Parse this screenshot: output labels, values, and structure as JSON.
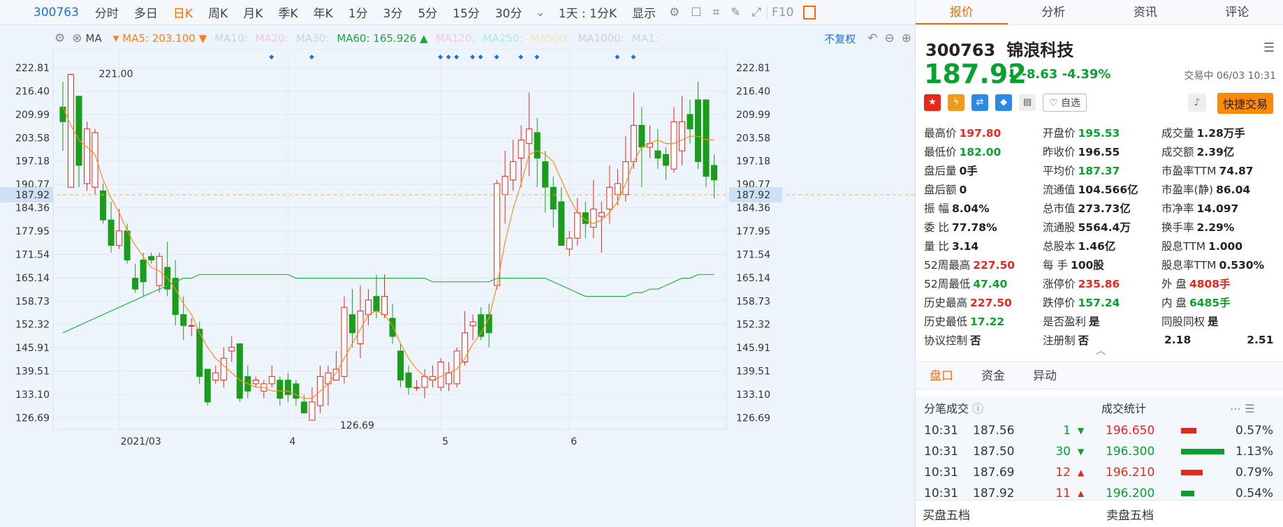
{
  "toolbar": {
    "code": "300763",
    "periods": [
      "分时",
      "多日",
      "日K",
      "周K",
      "月K",
      "季K",
      "年K",
      "1分",
      "3分",
      "5分",
      "15分",
      "30分"
    ],
    "active_index": 2,
    "interval": "1天 : 1分K",
    "display": "显示",
    "f10": "F10"
  },
  "ma": {
    "label": "MA",
    "items": [
      {
        "text": "MA5: 203.100 ▼",
        "color": "#ff7f0e"
      },
      {
        "text": "MA10:",
        "color": "#b8d8f0"
      },
      {
        "text": "MA20:",
        "color": "#f4c8d8"
      },
      {
        "text": "MA30:",
        "color": "#b8d8f0"
      },
      {
        "text": "MA60: 165.926 ▲",
        "color": "#1fa43a"
      },
      {
        "text": "MA120:",
        "color": "#f4c8d8"
      },
      {
        "text": "MA250:",
        "color": "#a8e8f4"
      },
      {
        "text": "MA500:",
        "color": "#f4e4b8"
      },
      {
        "text": "MA1000:",
        "color": "#d8c8f0"
      },
      {
        "text": "MA1:",
        "color": "#c8d8e8"
      }
    ],
    "fq": "不复权"
  },
  "chart_data": {
    "type": "candlestick",
    "ylim": [
      123.5,
      228
    ],
    "yticks": [
      "222.81",
      "216.40",
      "209.99",
      "203.58",
      "197.18",
      "190.77",
      "184.36",
      "177.95",
      "171.54",
      "165.14",
      "158.73",
      "152.32",
      "145.91",
      "139.51",
      "133.10",
      "126.69"
    ],
    "current_price": "187.92",
    "high_label": "221.00",
    "low_label": "126.69",
    "xticks": [
      {
        "label": "2021/03",
        "i": 7
      },
      {
        "label": "4",
        "i": 28
      },
      {
        "label": "5",
        "i": 47
      },
      {
        "label": "6",
        "i": 63
      }
    ],
    "candles": [
      [
        212,
        208,
        219,
        200
      ],
      [
        190,
        221,
        221,
        190
      ],
      [
        215,
        196,
        215,
        190
      ],
      [
        191,
        206,
        208,
        189
      ],
      [
        190,
        205,
        206,
        188
      ],
      [
        189,
        181,
        191,
        180
      ],
      [
        181,
        174,
        186,
        172
      ],
      [
        174,
        178,
        184,
        173
      ],
      [
        178,
        170,
        180,
        169
      ],
      [
        165,
        162,
        169,
        161
      ],
      [
        170,
        164,
        172,
        160
      ],
      [
        171,
        170,
        172,
        169
      ],
      [
        163,
        171,
        172,
        161
      ],
      [
        168,
        162,
        175,
        160
      ],
      [
        165,
        155,
        170,
        152
      ],
      [
        155,
        152,
        160,
        148
      ],
      [
        152,
        152,
        154,
        149
      ],
      [
        151,
        138,
        153,
        136
      ],
      [
        140,
        131,
        140,
        130
      ],
      [
        137,
        139,
        141,
        136
      ],
      [
        137,
        143,
        146,
        135
      ],
      [
        145,
        146,
        149,
        142
      ],
      [
        147,
        132,
        147,
        131
      ],
      [
        138,
        134,
        141,
        132
      ],
      [
        136,
        137,
        138,
        135
      ],
      [
        134,
        136,
        137,
        132
      ],
      [
        136,
        138,
        141,
        135
      ],
      [
        137,
        132,
        138,
        130
      ],
      [
        137,
        133,
        139,
        131
      ],
      [
        136,
        132,
        137,
        130
      ],
      [
        131,
        128,
        133,
        128
      ],
      [
        126,
        131,
        135,
        126
      ],
      [
        130,
        138,
        141,
        128
      ],
      [
        136,
        139,
        141,
        130
      ],
      [
        137,
        140,
        145,
        137
      ],
      [
        138,
        157,
        160,
        136
      ],
      [
        155,
        150,
        162,
        146
      ],
      [
        147,
        156,
        163,
        143
      ],
      [
        155,
        159,
        162,
        152
      ],
      [
        160,
        156,
        166,
        154
      ],
      [
        155,
        160,
        166,
        154
      ],
      [
        154,
        149,
        158,
        147
      ],
      [
        145,
        137,
        147,
        135
      ],
      [
        139,
        135,
        141,
        133
      ],
      [
        135,
        135,
        137,
        134
      ],
      [
        135,
        138,
        140,
        132
      ],
      [
        137,
        138,
        141,
        135
      ],
      [
        135,
        142,
        143,
        134
      ],
      [
        136,
        139,
        142,
        134
      ],
      [
        136,
        145,
        146,
        135
      ],
      [
        142,
        150,
        156,
        141
      ],
      [
        152,
        153,
        155,
        148
      ],
      [
        155,
        149,
        157,
        148
      ],
      [
        155,
        150,
        158,
        146
      ],
      [
        163,
        191,
        192,
        162
      ],
      [
        188,
        193,
        200,
        180
      ],
      [
        192,
        197,
        203,
        189
      ],
      [
        198,
        203,
        207,
        190
      ],
      [
        202,
        206,
        216,
        193
      ],
      [
        205,
        198,
        209,
        190
      ],
      [
        197,
        190,
        200,
        183
      ],
      [
        190,
        184,
        193,
        179
      ],
      [
        186,
        174,
        190,
        174
      ],
      [
        173,
        176,
        178,
        171
      ],
      [
        176,
        183,
        187,
        174
      ],
      [
        183,
        180,
        186,
        176
      ],
      [
        179,
        184,
        192,
        176
      ],
      [
        182,
        183,
        186,
        172
      ],
      [
        184,
        190,
        196,
        180
      ],
      [
        188,
        191,
        195,
        185
      ],
      [
        188,
        197,
        204,
        186
      ],
      [
        197,
        207,
        216,
        195
      ],
      [
        207,
        201,
        212,
        190
      ],
      [
        201,
        202,
        207,
        198
      ],
      [
        200,
        198,
        206,
        195
      ],
      [
        199,
        196,
        201,
        192
      ],
      [
        195,
        208,
        212,
        194
      ],
      [
        200,
        208,
        215,
        196
      ],
      [
        210,
        206,
        214,
        202
      ],
      [
        214,
        197,
        219,
        195
      ],
      [
        214,
        193,
        214,
        190
      ],
      [
        196,
        192,
        199,
        187
      ]
    ],
    "ma5": [
      212,
      207,
      203,
      201,
      199,
      192,
      187,
      183,
      178,
      174,
      171,
      168,
      167,
      165,
      162,
      158,
      155,
      150,
      146,
      143,
      141,
      139,
      137,
      136,
      135,
      135,
      134,
      134,
      134,
      133,
      132,
      132,
      134,
      136,
      139,
      143,
      147,
      151,
      155,
      156,
      155,
      152,
      147,
      143,
      140,
      138,
      137,
      138,
      139,
      140,
      143,
      147,
      150,
      154,
      163,
      175,
      184,
      191,
      199,
      200,
      199,
      197,
      192,
      187,
      183,
      181,
      180,
      181,
      183,
      186,
      191,
      197,
      201,
      202,
      203,
      202,
      202,
      203,
      204,
      204,
      203,
      203
    ],
    "ma60": [
      150,
      151,
      152,
      153,
      154,
      155,
      156,
      157,
      158,
      159,
      160,
      161,
      162,
      163,
      164,
      165,
      165,
      166,
      166,
      166,
      166,
      166,
      166,
      166,
      166,
      166,
      166,
      166,
      166,
      165,
      165,
      165,
      165,
      165,
      165,
      165,
      165,
      165,
      165,
      165,
      165,
      165,
      165,
      165,
      165,
      165,
      164,
      164,
      164,
      164,
      164,
      164,
      164,
      164,
      165,
      165,
      165,
      165,
      165,
      165,
      165,
      164,
      163,
      162,
      161,
      160,
      160,
      160,
      160,
      160,
      160,
      161,
      161,
      162,
      162,
      163,
      164,
      165,
      165,
      166,
      166,
      166
    ]
  },
  "right": {
    "tabs": [
      "报价",
      "分析",
      "资讯",
      "评论"
    ],
    "code": "300763",
    "name": "锦浪科技",
    "price": "187.92",
    "arrow": "⬇",
    "change": "-8.63",
    "pct": "-4.39%",
    "status": "交易中 06/03 10:31",
    "tag": "自选",
    "quick": "快捷交易",
    "rows": [
      [
        [
          "最高价",
          "197.80",
          "red"
        ],
        [
          "开盘价",
          "195.53",
          "grn"
        ],
        [
          "成交量",
          "1.28万手",
          "blk"
        ]
      ],
      [
        [
          "最低价",
          "182.00",
          "grn"
        ],
        [
          "昨收价",
          "196.55",
          "blk"
        ],
        [
          "成交额",
          "2.39亿",
          "blk"
        ]
      ],
      [
        [
          "盘后量",
          "0手",
          "blk"
        ],
        [
          "平均价",
          "187.37",
          "grn"
        ],
        [
          "市盈率TTM",
          "74.87",
          "blk"
        ]
      ],
      [
        [
          "盘后额",
          "0",
          "blk"
        ],
        [
          "流通值",
          "104.566亿",
          "blk"
        ],
        [
          "市盈率(静)",
          "86.04",
          "blk"
        ]
      ],
      [
        [
          "振 幅",
          "8.04%",
          "blk"
        ],
        [
          "总市值",
          "273.73亿",
          "blk"
        ],
        [
          "市净率",
          "14.097",
          "blk"
        ]
      ],
      [
        [
          "委 比",
          "77.78%",
          "blk"
        ],
        [
          "流通股",
          "5564.4万",
          "blk"
        ],
        [
          "换手率",
          "2.29%",
          "blk"
        ]
      ],
      [
        [
          "量 比",
          "3.14",
          "blk"
        ],
        [
          "总股本",
          "1.46亿",
          "blk"
        ],
        [
          "股息TTM",
          "1.000",
          "blk"
        ]
      ],
      [
        [
          "52周最高",
          "227.50",
          "red"
        ],
        [
          "每 手",
          "100股",
          "blk"
        ],
        [
          "股息率TTM",
          "0.530%",
          "blk"
        ]
      ],
      [
        [
          "52周最低",
          "47.40",
          "grn"
        ],
        [
          "涨停价",
          "235.86",
          "red"
        ],
        [
          "外 盘",
          "4808手",
          "red"
        ]
      ],
      [
        [
          "历史最高",
          "227.50",
          "red"
        ],
        [
          "跌停价",
          "157.24",
          "grn"
        ],
        [
          "内 盘",
          "6485手",
          "grn"
        ]
      ],
      [
        [
          "历史最低",
          "17.22",
          "grn"
        ],
        [
          "是否盈利",
          "是",
          "blk"
        ],
        [
          "同股同权",
          "是",
          "blk"
        ]
      ],
      [
        [
          "协议控制",
          "否",
          "blk"
        ],
        [
          "注册制",
          "否",
          "blk"
        ],
        [
          "2.18",
          "2.51",
          "blk"
        ]
      ]
    ],
    "subtabs": [
      "盘口",
      "资金",
      "异动"
    ],
    "fb_title": "分笔成交",
    "stat_title": "成交统计",
    "trades": [
      [
        "10:31",
        "187.56",
        "1",
        "grn"
      ],
      [
        "10:31",
        "187.50",
        "30",
        "grn"
      ],
      [
        "10:31",
        "187.69",
        "12",
        "red"
      ],
      [
        "10:31",
        "187.92",
        "11",
        "red"
      ]
    ],
    "stats": [
      [
        "196.650",
        "0.57%",
        "red",
        0.36
      ],
      [
        "196.300",
        "1.13%",
        "grn",
        1.0
      ],
      [
        "196.210",
        "0.79%",
        "red",
        0.5
      ],
      [
        "196.200",
        "0.54%",
        "grn",
        0.3
      ]
    ],
    "buy": "买盘五档",
    "sell": "卖盘五档"
  }
}
